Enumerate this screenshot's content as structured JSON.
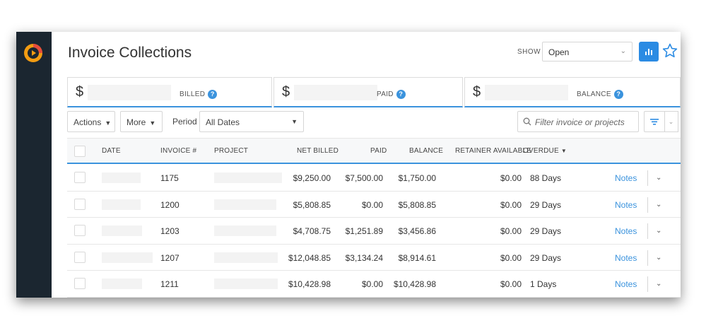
{
  "page": {
    "title": "Invoice Collections",
    "show_label": "SHOW",
    "show_value": "Open",
    "icons": {
      "logo": "play-logo-icon",
      "chart": "bar-chart-icon",
      "star": "star-outline-icon"
    }
  },
  "summary_cards": [
    {
      "symbol": "$",
      "label": "BILLED"
    },
    {
      "symbol": "$",
      "label": "PAID"
    },
    {
      "symbol": "$",
      "label": "BALANCE"
    }
  ],
  "toolbar": {
    "actions_label": "Actions",
    "more_label": "More",
    "period_label": "Period",
    "period_value": "All Dates",
    "filter_placeholder": "Filter invoice or projects"
  },
  "table": {
    "headers": {
      "date": "DATE",
      "invoice": "INVOICE #",
      "project": "PROJECT",
      "net_billed": "NET BILLED",
      "paid": "PAID",
      "balance": "BALANCE",
      "retainer": "RETAINER AVAILABLE",
      "overdue": "OVERDUE"
    },
    "rows": [
      {
        "invoice": "1175",
        "net_billed": "$9,250.00",
        "paid": "$7,500.00",
        "balance": "$1,750.00",
        "retainer": "$0.00",
        "overdue": "88 Days",
        "notes": "Notes"
      },
      {
        "invoice": "1200",
        "net_billed": "$5,808.85",
        "paid": "$0.00",
        "balance": "$5,808.85",
        "retainer": "$0.00",
        "overdue": "29 Days",
        "notes": "Notes"
      },
      {
        "invoice": "1203",
        "net_billed": "$4,708.75",
        "paid": "$1,251.89",
        "balance": "$3,456.86",
        "retainer": "$0.00",
        "overdue": "29 Days",
        "notes": "Notes"
      },
      {
        "invoice": "1207",
        "net_billed": "$12,048.85",
        "paid": "$3,134.24",
        "balance": "$8,914.61",
        "retainer": "$0.00",
        "overdue": "29 Days",
        "notes": "Notes"
      },
      {
        "invoice": "1211",
        "net_billed": "$10,428.98",
        "paid": "$0.00",
        "balance": "$10,428.98",
        "retainer": "$0.00",
        "overdue": "1 Days",
        "notes": "Notes"
      }
    ]
  },
  "colors": {
    "accent": "#2b8be3",
    "sidebar": "#1b2630",
    "logo_orange": "#f39c12"
  }
}
